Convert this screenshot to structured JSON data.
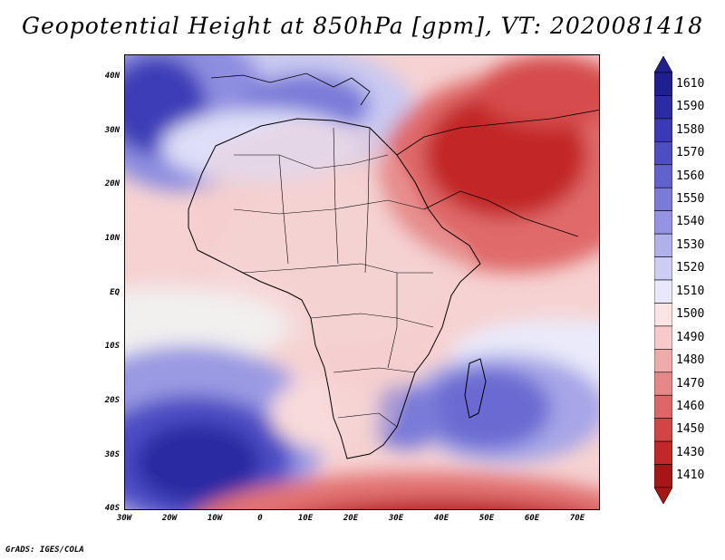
{
  "title": "Geopotential Height at 850hPa [gpm], VT: 2020081418",
  "footer": "GrADS: IGES/COLA",
  "map": {
    "lat_labels": [
      "40N",
      "30N",
      "20N",
      "10N",
      "EQ",
      "10S",
      "20S",
      "30S",
      "40S"
    ],
    "lon_labels": [
      "30W",
      "20W",
      "10W",
      "0",
      "10E",
      "20E",
      "30E",
      "40E",
      "50E",
      "60E",
      "70E"
    ]
  },
  "colorbar": {
    "levels": [
      "1610",
      "1590",
      "1580",
      "1570",
      "1560",
      "1550",
      "1540",
      "1530",
      "1520",
      "1510",
      "1500",
      "1490",
      "1480",
      "1470",
      "1460",
      "1450",
      "1430",
      "1410"
    ],
    "colors": [
      "#1f1f8f",
      "#2b2ba3",
      "#3a3ab6",
      "#4d4dc4",
      "#6262cf",
      "#7a7ad9",
      "#9494e2",
      "#b0b0eb",
      "#cdcdf3",
      "#e8e8fa",
      "#fbe4e4",
      "#f6caca",
      "#efaaaa",
      "#e78888",
      "#de6666",
      "#d24545",
      "#c22828",
      "#a81515"
    ]
  }
}
